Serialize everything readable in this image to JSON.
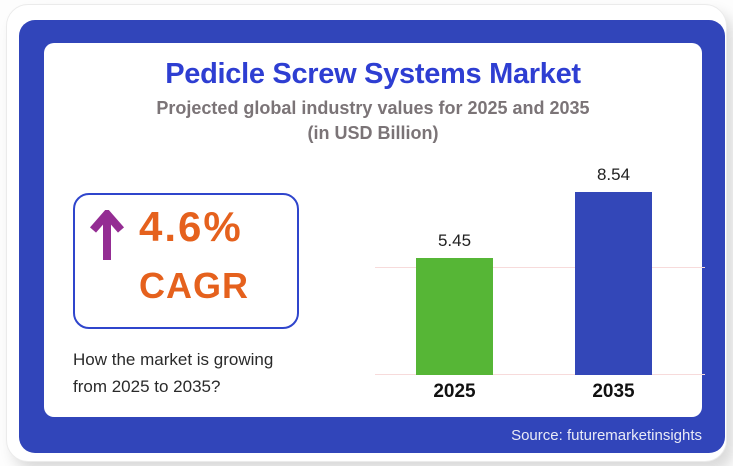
{
  "header": {
    "title": "Pedicle Screw Systems Market",
    "subtitle_line1": "Projected global industry values for 2025 and 2035",
    "subtitle_line2": "(in USD Billion)"
  },
  "cagr_box": {
    "icon": "up-arrow-icon",
    "value": "4.6%",
    "label": "CAGR",
    "arrow_color": "#942d93",
    "text_color": "#e5611d",
    "border_color": "#2f45cc"
  },
  "question": {
    "line1": "How the market is growing",
    "line2": "from 2025 to 2035?"
  },
  "chart_data": {
    "type": "bar",
    "title": "Pedicle Screw Systems Market",
    "subtitle": "Projected global industry values for 2025 and 2035 (in USD Billion)",
    "unit": "USD Billion",
    "categories": [
      "2025",
      "2035"
    ],
    "values": [
      5.45,
      8.54
    ],
    "bar_colors": [
      "#56b636",
      "#3347b8"
    ],
    "xlabel": "",
    "ylabel": "",
    "ylim": [
      0,
      10.37
    ],
    "gridlines": [
      0,
      5
    ],
    "gridline_color": "#f7dbdb",
    "legend_position": "none"
  },
  "footer": {
    "source": "Source: futuremarketinsights"
  },
  "colors": {
    "frame_blue": "#3145ba",
    "title_blue": "#2e3ed2",
    "subtitle_gray": "#7b7477",
    "body_text": "#2a2a2a"
  }
}
